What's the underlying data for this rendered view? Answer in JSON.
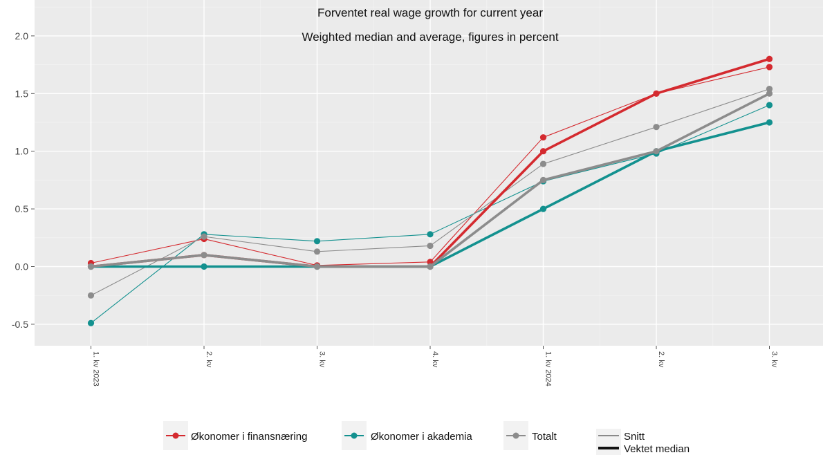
{
  "chart_data": {
    "type": "line",
    "title": "Forventet real wage growth for current year",
    "subtitle": "Weighted median and average, figures in percent",
    "xlabel": "",
    "ylabel": "",
    "categories": [
      "1. kv 2023",
      "2. kv",
      "3. kv",
      "4. kv",
      "1. kv 2024",
      "2. kv",
      "3. kv"
    ],
    "y_ticks": [
      -0.5,
      0.0,
      0.5,
      1.0,
      1.5,
      2.0
    ],
    "y_tick_labels": [
      "-0.5",
      "0.0",
      "0.5",
      "1.0",
      "1.5",
      "2.0"
    ],
    "ylim": [
      -0.7,
      2.2
    ],
    "grid": true,
    "legend_position": "bottom",
    "series": [
      {
        "name": "Økonomer i finansnæring",
        "color": "#d42a2f",
        "stat": "Snitt",
        "values": [
          0.03,
          0.24,
          0.01,
          0.04,
          1.12,
          1.5,
          1.73
        ]
      },
      {
        "name": "Økonomer i finansnæring",
        "color": "#d42a2f",
        "stat": "Vektet median",
        "values": [
          0.0,
          0.1,
          0.0,
          0.0,
          1.0,
          1.5,
          1.8
        ]
      },
      {
        "name": "Økonomer i akademia",
        "color": "#13918f",
        "stat": "Snitt",
        "values": [
          -0.49,
          0.28,
          0.22,
          0.28,
          0.74,
          0.98,
          1.4
        ]
      },
      {
        "name": "Økonomer i akademia",
        "color": "#13918f",
        "stat": "Vektet median",
        "values": [
          0.0,
          0.0,
          0.0,
          0.0,
          0.5,
          1.0,
          1.25
        ]
      },
      {
        "name": "Totalt",
        "color": "#8c8c8c",
        "stat": "Snitt",
        "values": [
          -0.25,
          0.26,
          0.13,
          0.18,
          0.89,
          1.21,
          1.54
        ]
      },
      {
        "name": "Totalt",
        "color": "#8c8c8c",
        "stat": "Vektet median",
        "values": [
          0.0,
          0.1,
          0.0,
          0.0,
          0.75,
          1.0,
          1.5
        ]
      }
    ],
    "legend": {
      "groups": [
        {
          "label": "Økonomer i finansnæring",
          "color": "#d42a2f"
        },
        {
          "label": "Økonomer i akademia",
          "color": "#13918f"
        },
        {
          "label": "Totalt",
          "color": "#8c8c8c"
        }
      ],
      "styles": [
        {
          "label": "Snitt",
          "line": "thin"
        },
        {
          "label": "Vektet median",
          "line": "thick"
        }
      ]
    }
  }
}
